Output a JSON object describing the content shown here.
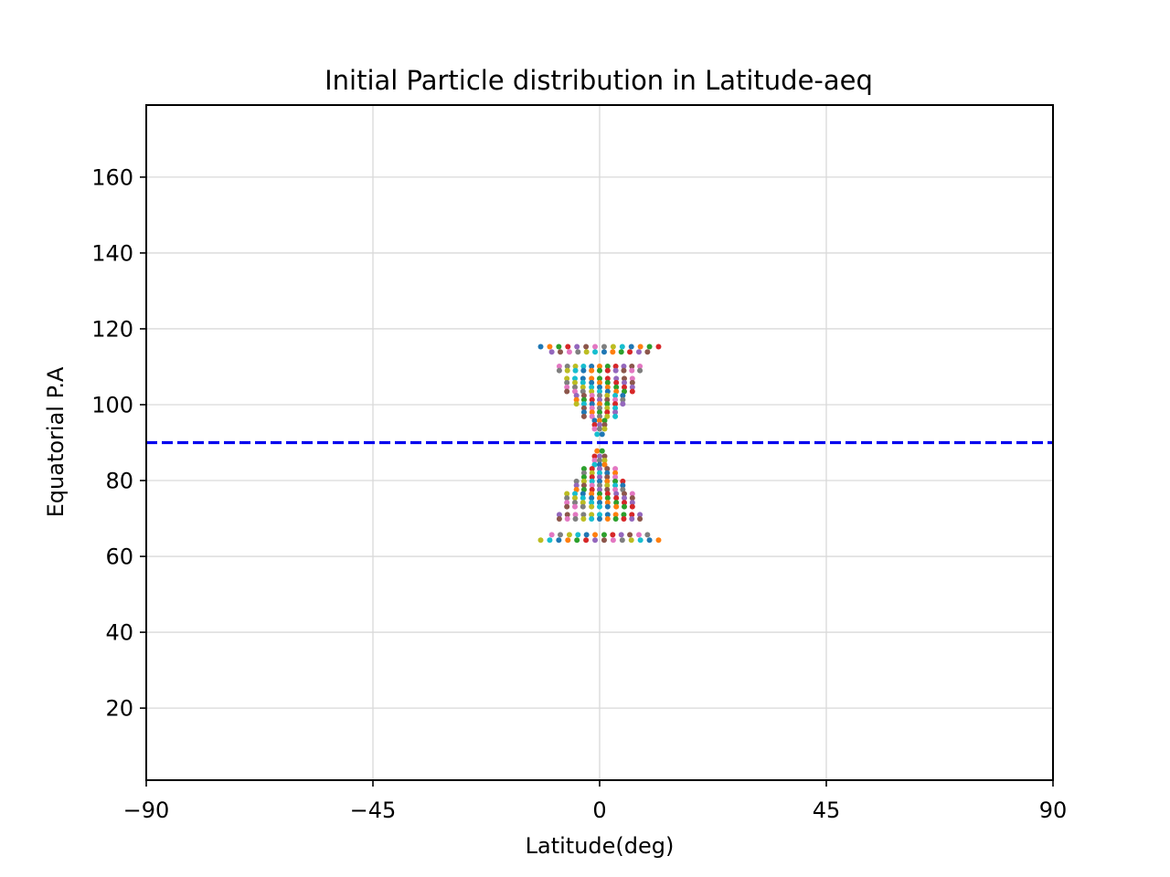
{
  "chart_data": {
    "type": "scatter",
    "title": "Initial Particle distribution in Latitude-aeq",
    "xlabel": "Latitude(deg)",
    "ylabel": "Equatorial P.A",
    "xlim": [
      -90,
      90
    ],
    "ylim": [
      1,
      179
    ],
    "xticks": [
      -90,
      -45,
      0,
      45,
      90
    ],
    "xtick_labels": [
      "−90",
      "−45",
      "0",
      "45",
      "90"
    ],
    "yticks": [
      20,
      40,
      60,
      80,
      100,
      120,
      140,
      160
    ],
    "ytick_labels": [
      "20",
      "40",
      "60",
      "80",
      "100",
      "120",
      "140",
      "160"
    ],
    "grid": true,
    "reference_line": {
      "y": 90,
      "style": "dashed",
      "color": "#0000ee"
    },
    "marker_colors": [
      "#1f77b4",
      "#ff7f0e",
      "#2ca02c",
      "#d62728",
      "#9467bd",
      "#8c564b",
      "#e377c2",
      "#7f7f7f",
      "#bcbd22",
      "#17becf"
    ],
    "points": [
      [
        -11.7,
        115.3
      ],
      [
        -9.9,
        115.3
      ],
      [
        -8.1,
        115.3
      ],
      [
        -6.3,
        115.3
      ],
      [
        -4.5,
        115.3
      ],
      [
        -2.7,
        115.3
      ],
      [
        -0.9,
        115.3
      ],
      [
        0.9,
        115.3
      ],
      [
        2.7,
        115.3
      ],
      [
        4.5,
        115.3
      ],
      [
        6.3,
        115.3
      ],
      [
        8.1,
        115.3
      ],
      [
        9.9,
        115.3
      ],
      [
        11.7,
        115.3
      ],
      [
        -9.5,
        113.9
      ],
      [
        -7.8,
        113.9
      ],
      [
        -6.0,
        113.9
      ],
      [
        -4.3,
        113.9
      ],
      [
        -2.6,
        113.9
      ],
      [
        -0.9,
        113.9
      ],
      [
        0.9,
        113.9
      ],
      [
        2.6,
        113.9
      ],
      [
        4.3,
        113.9
      ],
      [
        6.0,
        113.9
      ],
      [
        7.8,
        113.9
      ],
      [
        9.5,
        113.9
      ],
      [
        -8.0,
        110.1
      ],
      [
        -6.4,
        110.1
      ],
      [
        -4.8,
        110.1
      ],
      [
        -3.2,
        110.1
      ],
      [
        -1.6,
        110.1
      ],
      [
        0.0,
        110.1
      ],
      [
        1.6,
        110.1
      ],
      [
        3.2,
        110.1
      ],
      [
        4.8,
        110.1
      ],
      [
        6.4,
        110.1
      ],
      [
        8.0,
        110.1
      ],
      [
        -8.0,
        109.0
      ],
      [
        -6.4,
        109.0
      ],
      [
        -4.8,
        109.0
      ],
      [
        -3.2,
        109.0
      ],
      [
        -1.6,
        109.0
      ],
      [
        0.0,
        109.0
      ],
      [
        1.6,
        109.0
      ],
      [
        3.2,
        109.0
      ],
      [
        4.8,
        109.0
      ],
      [
        6.4,
        109.0
      ],
      [
        8.0,
        109.0
      ],
      [
        -6.5,
        106.9
      ],
      [
        -4.9,
        106.9
      ],
      [
        -3.3,
        106.9
      ],
      [
        -1.6,
        106.9
      ],
      [
        0.0,
        106.9
      ],
      [
        1.6,
        106.9
      ],
      [
        3.3,
        106.9
      ],
      [
        4.9,
        106.9
      ],
      [
        6.5,
        106.9
      ],
      [
        -6.5,
        105.8
      ],
      [
        -4.9,
        105.8
      ],
      [
        -3.3,
        105.8
      ],
      [
        -1.6,
        105.8
      ],
      [
        0.0,
        105.8
      ],
      [
        1.6,
        105.8
      ],
      [
        3.3,
        105.8
      ],
      [
        4.9,
        105.8
      ],
      [
        6.5,
        105.8
      ],
      [
        -6.5,
        104.6
      ],
      [
        -4.9,
        104.6
      ],
      [
        -3.3,
        104.6
      ],
      [
        -1.6,
        104.6
      ],
      [
        0.0,
        104.6
      ],
      [
        1.6,
        104.6
      ],
      [
        3.3,
        104.6
      ],
      [
        4.9,
        104.6
      ],
      [
        6.5,
        104.6
      ],
      [
        -6.5,
        103.5
      ],
      [
        -4.9,
        103.5
      ],
      [
        -3.3,
        103.5
      ],
      [
        -1.6,
        103.5
      ],
      [
        0.0,
        103.5
      ],
      [
        1.6,
        103.5
      ],
      [
        3.3,
        103.5
      ],
      [
        4.9,
        103.5
      ],
      [
        6.5,
        103.5
      ],
      [
        -4.6,
        102.4
      ],
      [
        -3.1,
        102.4
      ],
      [
        -1.5,
        102.4
      ],
      [
        0.0,
        102.4
      ],
      [
        1.5,
        102.4
      ],
      [
        3.1,
        102.4
      ],
      [
        4.6,
        102.4
      ],
      [
        -4.6,
        101.3
      ],
      [
        -3.1,
        101.3
      ],
      [
        -1.5,
        101.3
      ],
      [
        0.0,
        101.3
      ],
      [
        1.5,
        101.3
      ],
      [
        3.1,
        101.3
      ],
      [
        4.6,
        101.3
      ],
      [
        -4.6,
        100.2
      ],
      [
        -3.1,
        100.2
      ],
      [
        -1.5,
        100.2
      ],
      [
        0.0,
        100.2
      ],
      [
        1.5,
        100.2
      ],
      [
        3.1,
        100.2
      ],
      [
        4.6,
        100.2
      ],
      [
        -3.1,
        99.1
      ],
      [
        -1.5,
        99.1
      ],
      [
        0.0,
        99.1
      ],
      [
        1.5,
        99.1
      ],
      [
        3.1,
        99.1
      ],
      [
        -3.1,
        98.0
      ],
      [
        -1.5,
        98.0
      ],
      [
        0.0,
        98.0
      ],
      [
        1.5,
        98.0
      ],
      [
        3.1,
        98.0
      ],
      [
        -3.1,
        96.9
      ],
      [
        -1.5,
        96.9
      ],
      [
        0.0,
        96.9
      ],
      [
        1.5,
        96.9
      ],
      [
        3.1,
        96.9
      ],
      [
        -1.0,
        95.8
      ],
      [
        0.0,
        95.8
      ],
      [
        1.0,
        95.8
      ],
      [
        -1.0,
        94.7
      ],
      [
        0.0,
        94.7
      ],
      [
        1.0,
        94.7
      ],
      [
        -1.0,
        93.6
      ],
      [
        0.0,
        93.6
      ],
      [
        1.0,
        93.6
      ],
      [
        -0.5,
        92.2
      ],
      [
        0.5,
        92.2
      ],
      [
        -0.5,
        87.8
      ],
      [
        0.5,
        87.8
      ],
      [
        -1.0,
        86.4
      ],
      [
        0.0,
        86.4
      ],
      [
        1.0,
        86.4
      ],
      [
        -1.0,
        85.3
      ],
      [
        0.0,
        85.3
      ],
      [
        1.0,
        85.3
      ],
      [
        -1.0,
        84.2
      ],
      [
        0.0,
        84.2
      ],
      [
        1.0,
        84.2
      ],
      [
        -3.1,
        83.1
      ],
      [
        -1.5,
        83.1
      ],
      [
        0.0,
        83.1
      ],
      [
        1.5,
        83.1
      ],
      [
        3.1,
        83.1
      ],
      [
        -3.1,
        82.0
      ],
      [
        -1.5,
        82.0
      ],
      [
        0.0,
        82.0
      ],
      [
        1.5,
        82.0
      ],
      [
        3.1,
        82.0
      ],
      [
        -3.1,
        80.9
      ],
      [
        -1.5,
        80.9
      ],
      [
        0.0,
        80.9
      ],
      [
        1.5,
        80.9
      ],
      [
        3.1,
        80.9
      ],
      [
        -4.6,
        79.8
      ],
      [
        -3.1,
        79.8
      ],
      [
        -1.5,
        79.8
      ],
      [
        0.0,
        79.8
      ],
      [
        1.5,
        79.8
      ],
      [
        3.1,
        79.8
      ],
      [
        4.6,
        79.8
      ],
      [
        -4.6,
        78.7
      ],
      [
        -3.1,
        78.7
      ],
      [
        -1.5,
        78.7
      ],
      [
        0.0,
        78.7
      ],
      [
        1.5,
        78.7
      ],
      [
        3.1,
        78.7
      ],
      [
        4.6,
        78.7
      ],
      [
        -4.6,
        77.6
      ],
      [
        -3.1,
        77.6
      ],
      [
        -1.5,
        77.6
      ],
      [
        0.0,
        77.6
      ],
      [
        1.5,
        77.6
      ],
      [
        3.1,
        77.6
      ],
      [
        4.6,
        77.6
      ],
      [
        -6.5,
        76.5
      ],
      [
        -4.9,
        76.5
      ],
      [
        -3.3,
        76.5
      ],
      [
        -1.6,
        76.5
      ],
      [
        0.0,
        76.5
      ],
      [
        1.6,
        76.5
      ],
      [
        3.3,
        76.5
      ],
      [
        4.9,
        76.5
      ],
      [
        6.5,
        76.5
      ],
      [
        -6.5,
        75.4
      ],
      [
        -4.9,
        75.4
      ],
      [
        -3.3,
        75.4
      ],
      [
        -1.6,
        75.4
      ],
      [
        0.0,
        75.4
      ],
      [
        1.6,
        75.4
      ],
      [
        3.3,
        75.4
      ],
      [
        4.9,
        75.4
      ],
      [
        6.5,
        75.4
      ],
      [
        -6.5,
        74.2
      ],
      [
        -4.9,
        74.2
      ],
      [
        -3.3,
        74.2
      ],
      [
        -1.6,
        74.2
      ],
      [
        0.0,
        74.2
      ],
      [
        1.6,
        74.2
      ],
      [
        3.3,
        74.2
      ],
      [
        4.9,
        74.2
      ],
      [
        6.5,
        74.2
      ],
      [
        -6.5,
        73.1
      ],
      [
        -4.9,
        73.1
      ],
      [
        -3.3,
        73.1
      ],
      [
        -1.6,
        73.1
      ],
      [
        0.0,
        73.1
      ],
      [
        1.6,
        73.1
      ],
      [
        3.3,
        73.1
      ],
      [
        4.9,
        73.1
      ],
      [
        6.5,
        73.1
      ],
      [
        -8.0,
        71.0
      ],
      [
        -6.4,
        71.0
      ],
      [
        -4.8,
        71.0
      ],
      [
        -3.2,
        71.0
      ],
      [
        -1.6,
        71.0
      ],
      [
        0.0,
        71.0
      ],
      [
        1.6,
        71.0
      ],
      [
        3.2,
        71.0
      ],
      [
        4.8,
        71.0
      ],
      [
        6.4,
        71.0
      ],
      [
        8.0,
        71.0
      ],
      [
        -8.0,
        69.9
      ],
      [
        -6.4,
        69.9
      ],
      [
        -4.8,
        69.9
      ],
      [
        -3.2,
        69.9
      ],
      [
        -1.6,
        69.9
      ],
      [
        0.0,
        69.9
      ],
      [
        1.6,
        69.9
      ],
      [
        3.2,
        69.9
      ],
      [
        4.8,
        69.9
      ],
      [
        6.4,
        69.9
      ],
      [
        8.0,
        69.9
      ],
      [
        -9.5,
        65.7
      ],
      [
        -7.8,
        65.7
      ],
      [
        -6.0,
        65.7
      ],
      [
        -4.3,
        65.7
      ],
      [
        -2.6,
        65.7
      ],
      [
        -0.9,
        65.7
      ],
      [
        0.9,
        65.7
      ],
      [
        2.6,
        65.7
      ],
      [
        4.3,
        65.7
      ],
      [
        6.0,
        65.7
      ],
      [
        7.8,
        65.7
      ],
      [
        9.5,
        65.7
      ],
      [
        -11.7,
        64.3
      ],
      [
        -9.9,
        64.3
      ],
      [
        -8.1,
        64.3
      ],
      [
        -6.3,
        64.3
      ],
      [
        -4.5,
        64.3
      ],
      [
        -2.7,
        64.3
      ],
      [
        -0.9,
        64.3
      ],
      [
        0.9,
        64.3
      ],
      [
        2.7,
        64.3
      ],
      [
        4.5,
        64.3
      ],
      [
        6.3,
        64.3
      ],
      [
        8.1,
        64.3
      ],
      [
        9.9,
        64.3
      ],
      [
        11.7,
        64.3
      ]
    ]
  }
}
